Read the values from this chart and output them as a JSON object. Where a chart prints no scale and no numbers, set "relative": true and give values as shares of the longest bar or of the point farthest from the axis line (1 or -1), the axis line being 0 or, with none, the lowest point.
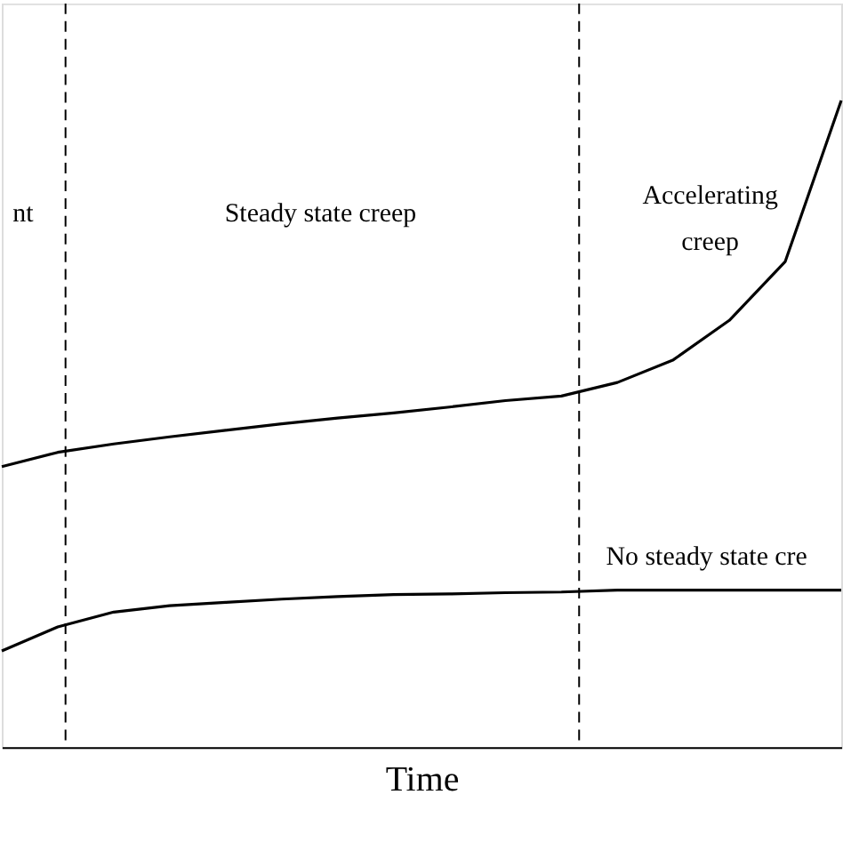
{
  "chart_data": {
    "type": "line",
    "relative": true,
    "xlabel": "Time",
    "categories": [
      null,
      null,
      null,
      null,
      null,
      null,
      null,
      null,
      null,
      null,
      null,
      null,
      null,
      null,
      null,
      null
    ],
    "grid": false,
    "legend": false,
    "marker": "none",
    "line_style": "solid",
    "series": [
      {
        "color": "#000000",
        "values": [
          0.434,
          0.456,
          0.469,
          0.48,
          0.49,
          0.5,
          0.509,
          0.517,
          0.526,
          0.536,
          0.543,
          0.564,
          0.599,
          0.66,
          0.751,
          1
        ]
      },
      {
        "color": "#000000",
        "values": [
          0.149,
          0.186,
          0.209,
          0.219,
          0.224,
          0.229,
          0.233,
          0.236,
          0.237,
          0.239,
          0.24,
          0.243,
          0.243,
          0.243,
          0.243,
          0.243
        ]
      }
    ],
    "annotations": [
      "nt",
      "Steady state creep",
      "Accelerating creep",
      "No steady state cre"
    ]
  }
}
